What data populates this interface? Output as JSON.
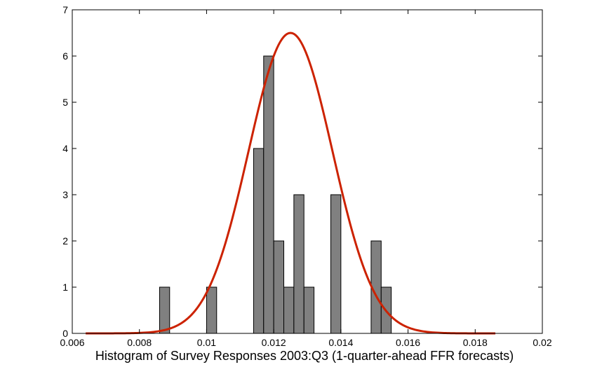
{
  "chart_data": {
    "type": "bar",
    "title": "",
    "xlabel": "Histogram of Survey Responses 2003:Q3 (1-quarter-ahead FFR forecasts)",
    "ylabel": "",
    "xlim": [
      0.006,
      0.02
    ],
    "ylim": [
      0,
      7
    ],
    "x_ticks": [
      "0.006",
      "0.008",
      "0.01",
      "0.012",
      "0.014",
      "0.016",
      "0.018",
      "0.02"
    ],
    "y_ticks": [
      "0",
      "1",
      "2",
      "3",
      "4",
      "5",
      "6",
      "7"
    ],
    "bin_width": 0.0003,
    "bars": [
      {
        "x": 0.00875,
        "y": 1
      },
      {
        "x": 0.01015,
        "y": 1
      },
      {
        "x": 0.01155,
        "y": 4
      },
      {
        "x": 0.01185,
        "y": 6
      },
      {
        "x": 0.01215,
        "y": 2
      },
      {
        "x": 0.01245,
        "y": 1
      },
      {
        "x": 0.01275,
        "y": 3
      },
      {
        "x": 0.01305,
        "y": 1
      },
      {
        "x": 0.01385,
        "y": 3
      },
      {
        "x": 0.01505,
        "y": 2
      },
      {
        "x": 0.01535,
        "y": 1
      }
    ],
    "fit_curve": {
      "type": "normal",
      "mean": 0.0125,
      "sd": 0.00125,
      "peak": 6.5,
      "x_range": [
        0.0064,
        0.0186
      ]
    },
    "grid": false,
    "colors": {
      "bar_fill": "#808080",
      "bar_edge": "#000000",
      "curve": "#cc2200"
    }
  }
}
